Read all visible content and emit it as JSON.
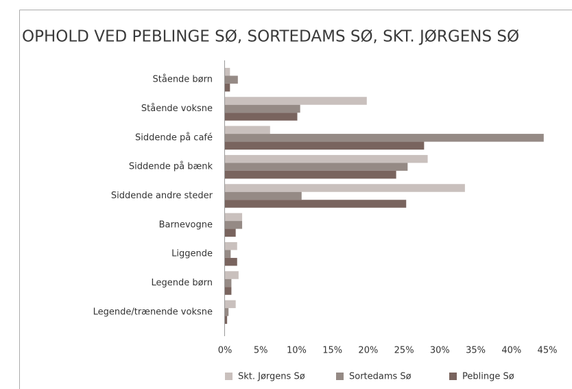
{
  "chart_data": {
    "type": "hbar",
    "title": "OPHOLD VED PEBLINGE SØ, SORTEDAMS SØ, SKT. JØRGENS SØ",
    "categories": [
      "Stående børn",
      "Stående voksne",
      "Siddende på café",
      "Siddende på bænk",
      "Siddende andre steder",
      "Barnevogne",
      "Liggende",
      "Legende børn",
      "Legende/trænende voksne"
    ],
    "series": [
      {
        "name": "Skt. Jørgens Sø",
        "color": "#c9c0bd",
        "values": [
          0.7,
          19.8,
          6.3,
          28.3,
          33.5,
          2.4,
          1.7,
          1.9,
          1.5
        ]
      },
      {
        "name": "Sortedams Sø",
        "color": "#958a85",
        "values": [
          1.8,
          10.5,
          44.5,
          25.5,
          10.7,
          2.4,
          0.8,
          0.9,
          0.5
        ]
      },
      {
        "name": "Peblinge Sø",
        "color": "#79645e",
        "values": [
          0.7,
          10.1,
          27.8,
          23.9,
          25.3,
          1.5,
          1.7,
          0.9,
          0.3
        ]
      }
    ],
    "xlim": [
      0,
      45
    ],
    "xticks": [
      {
        "value": 0,
        "label": "0%"
      },
      {
        "value": 5,
        "label": "5%"
      },
      {
        "value": 10,
        "label": "10%"
      },
      {
        "value": 15,
        "label": "15%"
      },
      {
        "value": 20,
        "label": "20%"
      },
      {
        "value": 25,
        "label": "25%"
      },
      {
        "value": 30,
        "label": "30%"
      },
      {
        "value": 35,
        "label": "35%"
      },
      {
        "value": 40,
        "label": "40%"
      },
      {
        "value": 45,
        "label": "45%"
      }
    ],
    "legend": "bottom"
  }
}
